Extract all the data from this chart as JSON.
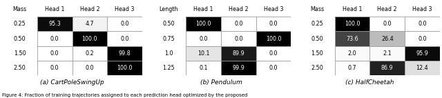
{
  "tables": [
    {
      "title": "(a) CartPoleSwingUp",
      "row_label": "Mass",
      "col_labels": [
        "Head 1",
        "Head 2",
        "Head 3"
      ],
      "row_keys": [
        "0.25",
        "0.50",
        "1.50",
        "2.50"
      ],
      "values": [
        [
          95.3,
          4.7,
          0.0
        ],
        [
          0.0,
          100.0,
          0.0
        ],
        [
          0.0,
          0.2,
          99.8
        ],
        [
          0.0,
          0.0,
          100.0
        ]
      ]
    },
    {
      "title": "(b) Pendulum",
      "row_label": "Length",
      "col_labels": [
        "Head 1",
        "Head 2",
        "Head 3"
      ],
      "row_keys": [
        "0.50",
        "0.75",
        "1.0",
        "1.25"
      ],
      "values": [
        [
          100.0,
          0.0,
          0.0
        ],
        [
          0.0,
          0.0,
          100.0
        ],
        [
          10.1,
          89.9,
          0.0
        ],
        [
          0.1,
          99.9,
          0.0
        ]
      ]
    },
    {
      "title": "(c) HalfCheetah",
      "row_label": "Mass",
      "col_labels": [
        "Head 1",
        "Head 2",
        "Head 3"
      ],
      "row_keys": [
        "0.25",
        "0.50",
        "1.50",
        "2.50"
      ],
      "values": [
        [
          100.0,
          0.0,
          0.0
        ],
        [
          73.6,
          26.4,
          0.0
        ],
        [
          2.0,
          2.1,
          95.9
        ],
        [
          0.7,
          86.9,
          12.4
        ]
      ]
    }
  ],
  "caption": "Figure 4: Fraction of training trajectories assigned to each prediction head optimized by the proposed",
  "bg_color": "#ffffff"
}
